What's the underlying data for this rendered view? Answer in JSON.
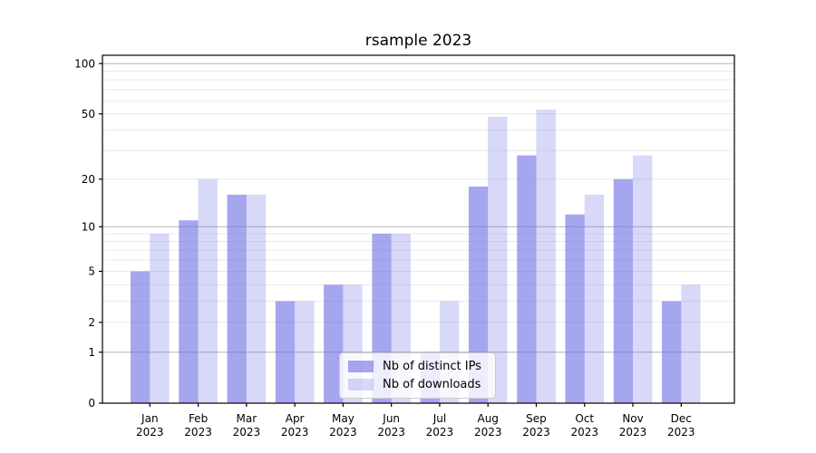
{
  "chart_data": {
    "type": "bar",
    "title": "rsample 2023",
    "categories": [
      "Jan",
      "Feb",
      "Mar",
      "Apr",
      "May",
      "Jun",
      "Jul",
      "Aug",
      "Sep",
      "Oct",
      "Nov",
      "Dec"
    ],
    "year_label": "2023",
    "series": [
      {
        "name": "Nb of distinct IPs",
        "values": [
          5,
          11,
          16,
          3,
          4,
          9,
          1,
          18,
          28,
          12,
          20,
          3
        ],
        "color": "rgba(111,111,229,0.62)"
      },
      {
        "name": "Nb of downloads",
        "values": [
          9,
          20,
          16,
          3,
          4,
          9,
          3,
          48,
          53,
          16,
          28,
          4
        ],
        "color": "rgba(111,111,229,0.27)"
      }
    ],
    "yscale": "log1p",
    "yticks": [
      0,
      1,
      2,
      5,
      10,
      20,
      50,
      100
    ],
    "ylim": [
      0,
      112
    ],
    "xlabel": "",
    "ylabel": "",
    "grid": {
      "on": true,
      "major_lines": [
        1,
        10,
        100
      ],
      "minor_lines": [
        2,
        3,
        4,
        5,
        6,
        7,
        8,
        9,
        20,
        30,
        40,
        50,
        60,
        70,
        80,
        90
      ],
      "major_color": "#b3b3b3",
      "minor_color": "#e9e9e9"
    },
    "legend": {
      "position": "lower center"
    },
    "axis_color": "#000000"
  }
}
